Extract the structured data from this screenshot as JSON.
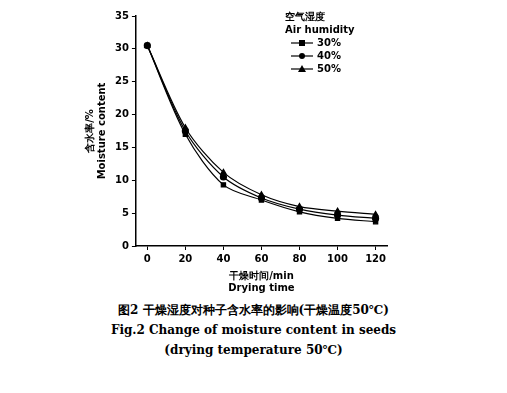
{
  "chart_data": {
    "type": "line",
    "title": [
      "图2  干燥湿度对种子含水率的影响(干燥温度50℃)",
      "Fig.2  Change of moisture content in seeds",
      "(drying temperature 50℃)"
    ],
    "x_label": [
      "干燥时间/min",
      "Drying time"
    ],
    "y_label": [
      "含水率/%",
      "Moisture content"
    ],
    "legend_title": [
      "空气湿度",
      "Air humidity"
    ],
    "x": [
      0,
      20,
      40,
      60,
      80,
      100,
      120
    ],
    "series": [
      {
        "name": "30%",
        "color": "#000000",
        "marker": "square",
        "line_style": "solid",
        "values": [
          30.5,
          17.0,
          9.3,
          7.0,
          5.2,
          4.2,
          3.7
        ]
      },
      {
        "name": "40%",
        "color": "#000000",
        "marker": "circle",
        "line_style": "solid",
        "values": [
          30.5,
          17.5,
          10.5,
          7.3,
          5.6,
          4.7,
          4.2
        ]
      },
      {
        "name": "50%",
        "color": "#000000",
        "marker": "triangle",
        "line_style": "solid",
        "values": [
          30.5,
          18.0,
          11.2,
          7.8,
          6.0,
          5.3,
          4.8
        ]
      }
    ],
    "xlim": [
      -6,
      126
    ],
    "xticks": [
      0,
      20,
      40,
      60,
      80,
      100,
      120
    ],
    "ylim": [
      0,
      35
    ],
    "yticks": [
      0,
      5,
      10,
      15,
      20,
      25,
      30,
      35
    ],
    "grid": false,
    "legend": "top-right"
  }
}
